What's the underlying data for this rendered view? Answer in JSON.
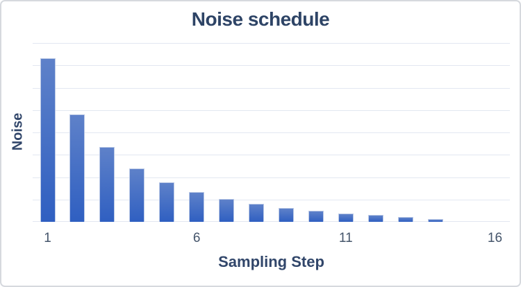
{
  "chart": {
    "colors": {
      "title_text": "#2E4466",
      "axis_title_text": "#31466A",
      "tick_text": "#44546A",
      "gridline": "#E2E7F1",
      "bar_gradient_top": "#5E81C9",
      "bar_gradient_bottom": "#2F5FC1",
      "bar_border": "#BCCAE6",
      "frame_border": "#D6D9DE",
      "background": "#FFFFFF"
    }
  },
  "chart_data": {
    "type": "bar",
    "title": "Noise schedule",
    "xlabel": "Sampling Step",
    "ylabel": "Noise",
    "categories": [
      1,
      2,
      3,
      4,
      5,
      6,
      7,
      8,
      9,
      10,
      11,
      12,
      13,
      14,
      15,
      16
    ],
    "values": [
      1.0,
      0.66,
      0.457,
      0.328,
      0.242,
      0.183,
      0.142,
      0.112,
      0.085,
      0.066,
      0.051,
      0.042,
      0.028,
      0.019,
      0,
      0
    ],
    "value_units": "relative noise (max bar = 1.0), y axis unlabeled",
    "ylim": [
      0,
      1.0955
    ],
    "gridline_count": 9,
    "grid": "horizontal",
    "legend": "none",
    "x_ticks": [
      {
        "label": "1",
        "at": 1
      },
      {
        "label": "6",
        "at": 6
      },
      {
        "label": "11",
        "at": 11
      },
      {
        "label": "16",
        "at": 16
      }
    ]
  }
}
